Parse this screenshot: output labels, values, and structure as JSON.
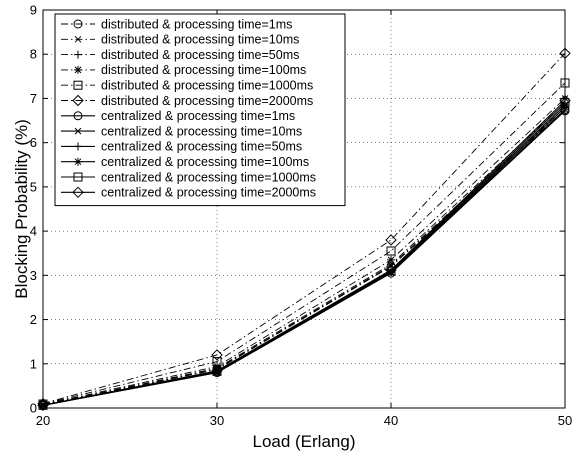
{
  "chart_data": {
    "type": "line",
    "xlabel": "Load (Erlang)",
    "ylabel": "Blocking Probability (%)",
    "xlim": [
      20,
      50
    ],
    "ylim": [
      0,
      9
    ],
    "xticks": [
      20,
      30,
      40,
      50
    ],
    "yticks": [
      0,
      1,
      2,
      3,
      4,
      5,
      6,
      7,
      8,
      9
    ],
    "x": [
      20,
      30,
      40,
      50
    ],
    "grid": true,
    "legend_position": "top-left",
    "series": [
      {
        "name": "distributed & processing time=1ms",
        "marker": "circle",
        "style": "dashdot",
        "values": [
          0.07,
          0.87,
          3.2,
          6.75
        ]
      },
      {
        "name": "distributed & processing time=10ms",
        "marker": "cross",
        "style": "dashdot",
        "values": [
          0.07,
          0.88,
          3.22,
          6.8
        ]
      },
      {
        "name": "distributed & processing time=50ms",
        "marker": "plus",
        "style": "dashdot",
        "values": [
          0.07,
          0.9,
          3.25,
          6.9
        ]
      },
      {
        "name": "distributed & processing time=100ms",
        "marker": "star",
        "style": "dashdot",
        "values": [
          0.08,
          0.94,
          3.35,
          7.0
        ]
      },
      {
        "name": "distributed & processing time=1000ms",
        "marker": "square",
        "style": "dashdot",
        "values": [
          0.09,
          1.05,
          3.55,
          7.35
        ]
      },
      {
        "name": "distributed & processing time=2000ms",
        "marker": "diamond",
        "style": "dashdot",
        "values": [
          0.1,
          1.2,
          3.8,
          8.02
        ]
      },
      {
        "name": "centralized & processing time=1ms",
        "marker": "circle",
        "style": "solid",
        "values": [
          0.06,
          0.8,
          3.05,
          6.72
        ]
      },
      {
        "name": "centralized & processing time=10ms",
        "marker": "cross",
        "style": "solid",
        "values": [
          0.06,
          0.8,
          3.06,
          6.75
        ]
      },
      {
        "name": "centralized & processing time=50ms",
        "marker": "plus",
        "style": "solid",
        "values": [
          0.06,
          0.81,
          3.07,
          6.8
        ]
      },
      {
        "name": "centralized & processing time=100ms",
        "marker": "star",
        "style": "solid",
        "values": [
          0.06,
          0.82,
          3.08,
          6.85
        ]
      },
      {
        "name": "centralized & processing time=1000ms",
        "marker": "square",
        "style": "solid",
        "values": [
          0.06,
          0.83,
          3.1,
          6.9
        ]
      },
      {
        "name": "centralized & processing time=2000ms",
        "marker": "diamond",
        "style": "solid",
        "values": [
          0.06,
          0.84,
          3.12,
          6.95
        ]
      }
    ]
  }
}
